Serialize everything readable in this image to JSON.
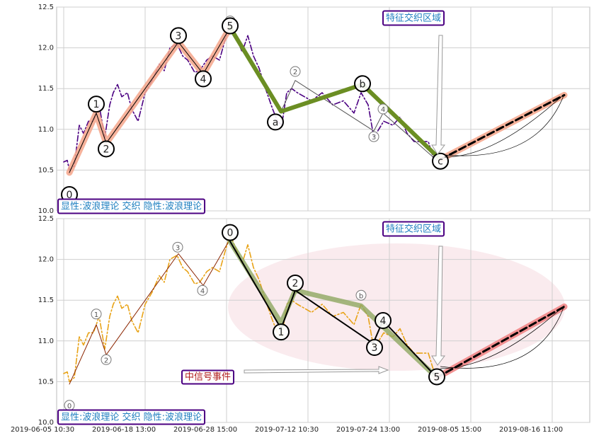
{
  "chart_data": [
    {
      "type": "line",
      "xlim": [
        -10,
        743
      ],
      "xticks": [
        0,
        115,
        230,
        345,
        460,
        575,
        690
      ],
      "ylim": [
        10.0,
        12.5
      ],
      "yticks": [
        {
          "value": 10.0,
          "label": "10.0"
        },
        {
          "value": 10.5,
          "label": "10.5"
        },
        {
          "value": 11.0,
          "label": "11.0"
        },
        {
          "value": 11.5,
          "label": "11.5"
        },
        {
          "value": 12.0,
          "label": "12.0"
        },
        {
          "value": 12.5,
          "label": "12.5"
        }
      ],
      "grid": true,
      "series": [
        {
          "color": "#4b0082",
          "style": "dashdot",
          "x": [
            0,
            5,
            8,
            15,
            22,
            28,
            35,
            42,
            50,
            58,
            65,
            70,
            76,
            82,
            90,
            96,
            105,
            115,
            125,
            135,
            142,
            150,
            160,
            168,
            175,
            185,
            192,
            202,
            210,
            220,
            228,
            235,
            245,
            252,
            260,
            268,
            276,
            285,
            295,
            302,
            308,
            315,
            322,
            330,
            340,
            350,
            365,
            380,
            395,
            410,
            420,
            430,
            438,
            445,
            452,
            465,
            475,
            485,
            495,
            505,
            515,
            522
          ],
          "values": [
            10.6,
            10.62,
            10.5,
            10.55,
            11.05,
            10.95,
            11.1,
            11.1,
            11.3,
            10.9,
            11.3,
            11.45,
            11.55,
            11.4,
            11.45,
            11.25,
            11.1,
            11.45,
            11.6,
            11.8,
            11.72,
            12.0,
            12.05,
            11.9,
            11.85,
            11.7,
            11.72,
            11.85,
            11.9,
            11.85,
            12.1,
            12.3,
            12.1,
            11.95,
            12.15,
            11.9,
            11.75,
            11.5,
            11.25,
            11.1,
            11.05,
            11.45,
            11.5,
            11.45,
            11.4,
            11.35,
            11.45,
            11.3,
            11.35,
            11.2,
            11.45,
            11.3,
            10.9,
            11.0,
            11.1,
            11.05,
            11.15,
            10.95,
            10.85,
            10.85,
            10.85,
            10.65
          ]
        },
        {
          "color": "#f4a58a",
          "style": "halo",
          "x": [
            8,
            46,
            60,
            162,
            197,
            235
          ],
          "values": [
            10.47,
            11.2,
            10.83,
            12.07,
            11.68,
            12.25
          ]
        },
        {
          "color": "#000000",
          "style": "thin",
          "x": [
            8,
            46,
            60,
            162,
            197,
            235
          ],
          "values": [
            10.47,
            11.2,
            10.83,
            12.07,
            11.68,
            12.25
          ]
        },
        {
          "color": "#555555",
          "style": "thin",
          "x": [
            307,
            327,
            438,
            451,
            527
          ],
          "values": [
            11.22,
            11.6,
            10.98,
            11.2,
            10.62
          ]
        },
        {
          "color": "#6b8e23",
          "style": "bold",
          "x": [
            235,
            307,
            422,
            532
          ],
          "values": [
            12.25,
            11.22,
            11.55,
            10.63
          ]
        },
        {
          "color": "#f4a58a",
          "style": "halo",
          "x": [
            532,
            707
          ],
          "values": [
            10.63,
            11.42
          ]
        },
        {
          "color": "#000000",
          "style": "dashed",
          "x": [
            532,
            707
          ],
          "values": [
            10.63,
            11.42
          ]
        }
      ],
      "points": [
        {
          "label": "0",
          "x": 8,
          "y": 10.2,
          "size": "large"
        },
        {
          "label": "1",
          "x": 46,
          "y": 11.31,
          "size": "large"
        },
        {
          "label": "2",
          "x": 60,
          "y": 10.76,
          "size": "large"
        },
        {
          "label": "3",
          "x": 162,
          "y": 12.15,
          "size": "large"
        },
        {
          "label": "4",
          "x": 197,
          "y": 11.62,
          "size": "large"
        },
        {
          "label": "b",
          "x": 235,
          "y": 12.33,
          "size": "small"
        },
        {
          "label": "5",
          "x": 235,
          "y": 12.27,
          "size": "large"
        },
        {
          "label": "a",
          "x": 299,
          "y": 11.09,
          "size": "large"
        },
        {
          "label": "2",
          "x": 327,
          "y": 11.71,
          "size": "small"
        },
        {
          "label": "b",
          "x": 422,
          "y": 11.56,
          "size": "large"
        },
        {
          "label": "4",
          "x": 451,
          "y": 11.25,
          "size": "small"
        },
        {
          "label": "3",
          "x": 438,
          "y": 10.91,
          "size": "small"
        },
        {
          "label": "c",
          "x": 532,
          "y": 10.61,
          "size": "large"
        }
      ],
      "annotations": [
        "显性:波浪理论 交织 隐性:波浪理论",
        "特征交织区域"
      ]
    },
    {
      "type": "line",
      "xlim": [
        -10,
        743
      ],
      "xticks": [
        {
          "value": 0,
          "label": "2019-06-05 10:30"
        },
        {
          "value": 115,
          "label": "2019-06-18 13:00"
        },
        {
          "value": 230,
          "label": "2019-06-28 15:00"
        },
        {
          "value": 345,
          "label": "2019-07-12 10:30"
        },
        {
          "value": 460,
          "label": "2019-07-24 13:00"
        },
        {
          "value": 575,
          "label": "2019-08-05 15:00"
        },
        {
          "value": 690,
          "label": "2019-08-16 11:00"
        }
      ],
      "ylim": [
        10.0,
        12.5
      ],
      "yticks": [
        {
          "value": 10.0,
          "label": "10.0"
        },
        {
          "value": 10.5,
          "label": "10.5"
        },
        {
          "value": 11.0,
          "label": "11.0"
        },
        {
          "value": 11.5,
          "label": "11.5"
        },
        {
          "value": 12.0,
          "label": "12.0"
        },
        {
          "value": 12.5,
          "label": "12.5"
        }
      ],
      "grid": true,
      "series": [
        {
          "color": "#e8a317",
          "style": "dashdot",
          "x": [
            0,
            5,
            8,
            15,
            22,
            28,
            35,
            42,
            50,
            58,
            65,
            70,
            76,
            82,
            90,
            96,
            105,
            115,
            125,
            135,
            142,
            150,
            160,
            168,
            175,
            185,
            192,
            202,
            210,
            220,
            228,
            235,
            245,
            252,
            260,
            268,
            276,
            285,
            295,
            302,
            308,
            315,
            322,
            330,
            340,
            350,
            365,
            380,
            395,
            410,
            420,
            430,
            438,
            445,
            452,
            465,
            475,
            485,
            495,
            505,
            515,
            522
          ],
          "values": [
            10.6,
            10.62,
            10.5,
            10.55,
            11.05,
            10.95,
            11.1,
            11.1,
            11.3,
            10.9,
            11.3,
            11.45,
            11.55,
            11.4,
            11.45,
            11.25,
            11.1,
            11.45,
            11.6,
            11.8,
            11.72,
            12.0,
            12.05,
            11.9,
            11.85,
            11.7,
            11.72,
            11.85,
            11.9,
            11.85,
            12.1,
            12.3,
            12.1,
            11.95,
            12.18,
            11.9,
            11.75,
            11.5,
            11.25,
            11.1,
            11.05,
            11.45,
            11.5,
            11.45,
            11.4,
            11.35,
            11.45,
            11.3,
            11.35,
            11.2,
            11.45,
            11.3,
            10.9,
            11.0,
            11.1,
            11.05,
            11.15,
            10.95,
            10.85,
            10.85,
            10.85,
            10.65
          ]
        },
        {
          "color": "#8b2500",
          "style": "thin",
          "x": [
            8,
            46,
            60,
            162,
            197,
            235
          ],
          "values": [
            10.47,
            11.2,
            10.83,
            12.07,
            11.68,
            12.25
          ]
        },
        {
          "color": "#8fa860",
          "style": "wide",
          "x": [
            235,
            307,
            327,
            420,
            527
          ],
          "values": [
            12.22,
            11.22,
            11.62,
            11.43,
            10.55
          ]
        },
        {
          "color": "#000000",
          "style": "mid",
          "x": [
            235,
            307,
            327,
            437,
            451,
            527
          ],
          "values": [
            12.22,
            11.15,
            11.62,
            10.97,
            11.25,
            10.55
          ]
        },
        {
          "color": "#f08080",
          "style": "halo",
          "x": [
            527,
            707
          ],
          "values": [
            10.55,
            11.42
          ]
        },
        {
          "color": "#000000",
          "style": "dashed",
          "x": [
            527,
            707
          ],
          "values": [
            10.55,
            11.42
          ]
        }
      ],
      "points": [
        {
          "label": "0",
          "x": 8,
          "y": 10.21,
          "size": "small"
        },
        {
          "label": "1",
          "x": 46,
          "y": 11.33,
          "size": "small"
        },
        {
          "label": "2",
          "x": 60,
          "y": 10.77,
          "size": "small"
        },
        {
          "label": "3",
          "x": 161,
          "y": 12.15,
          "size": "small"
        },
        {
          "label": "4",
          "x": 196,
          "y": 11.62,
          "size": "small"
        },
        {
          "label": "0",
          "x": 235,
          "y": 12.33,
          "size": "large"
        },
        {
          "label": "1",
          "x": 307,
          "y": 11.11,
          "size": "large"
        },
        {
          "label": "2",
          "x": 327,
          "y": 11.71,
          "size": "large"
        },
        {
          "label": "b",
          "x": 420,
          "y": 11.56,
          "size": "small"
        },
        {
          "label": "3",
          "x": 439,
          "y": 10.92,
          "size": "large"
        },
        {
          "label": "4",
          "x": 451,
          "y": 11.25,
          "size": "large"
        },
        {
          "label": "5",
          "x": 527,
          "y": 10.56,
          "size": "large"
        }
      ],
      "annotations": [
        "显性:波浪理论 交织 隐性:波浪理论",
        "特征交织区域",
        "中信号事件"
      ]
    }
  ]
}
